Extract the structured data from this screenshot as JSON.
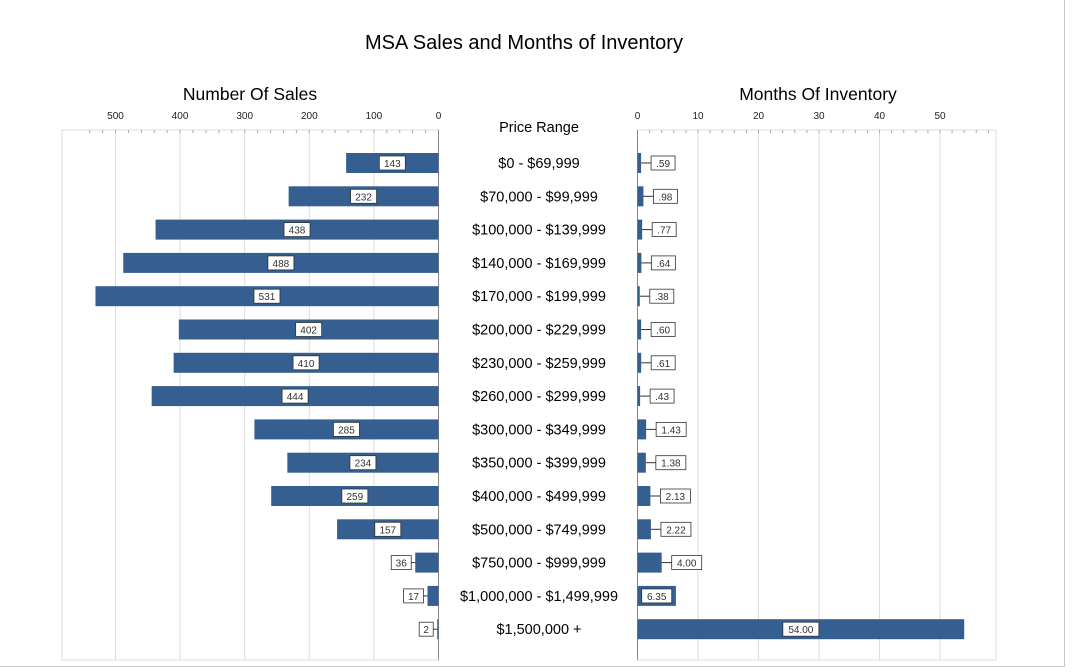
{
  "chart_data": {
    "type": "bar",
    "title": "MSA Sales and Months of Inventory",
    "category_header": "Price Range",
    "categories": [
      "$0 - $69,999",
      "$70,000 - $99,999",
      "$100,000 - $139,999",
      "$140,000 - $169,999",
      "$170,000 - $199,999",
      "$200,000 - $229,999",
      "$230,000 - $259,999",
      "$260,000 - $299,999",
      "$300,000 - $349,999",
      "$350,000 - $399,999",
      "$400,000 - $499,999",
      "$500,000 - $749,999",
      "$750,000 - $999,999",
      "$1,000,000 - $1,499,999",
      "$1,500,000 +"
    ],
    "panels": [
      {
        "title": "Number Of Sales",
        "orientation": "horizontal-reversed",
        "xlim": [
          0,
          550
        ],
        "ticks": [
          0,
          100,
          200,
          300,
          400,
          500
        ],
        "tick_labels": [
          "0",
          "100",
          "200",
          "300",
          "400",
          "500"
        ],
        "values": [
          143,
          232,
          438,
          488,
          531,
          402,
          410,
          444,
          285,
          234,
          259,
          157,
          36,
          17,
          2
        ],
        "labels": [
          "143",
          "232",
          "438",
          "488",
          "531",
          "402",
          "410",
          "444",
          "285",
          "234",
          "259",
          "157",
          "36",
          "17",
          "2"
        ]
      },
      {
        "title": "Months Of Inventory",
        "orientation": "horizontal",
        "xlim": [
          0,
          55
        ],
        "ticks": [
          0,
          10,
          20,
          30,
          40,
          50
        ],
        "tick_labels": [
          "0",
          "10",
          "20",
          "30",
          "40",
          "50"
        ],
        "values": [
          0.59,
          0.98,
          0.77,
          0.64,
          0.38,
          0.6,
          0.61,
          0.43,
          1.43,
          1.38,
          2.13,
          2.22,
          4.0,
          6.35,
          54.0
        ],
        "labels": [
          ".59",
          ".98",
          ".77",
          ".64",
          ".38",
          ".60",
          ".61",
          ".43",
          "1.43",
          "1.38",
          "2.13",
          "2.22",
          "4.00",
          "6.35",
          "54.00"
        ]
      }
    ],
    "bar_color": "#365f91",
    "grid": true,
    "grid_color": "#dcdcdc",
    "legend": "none"
  }
}
